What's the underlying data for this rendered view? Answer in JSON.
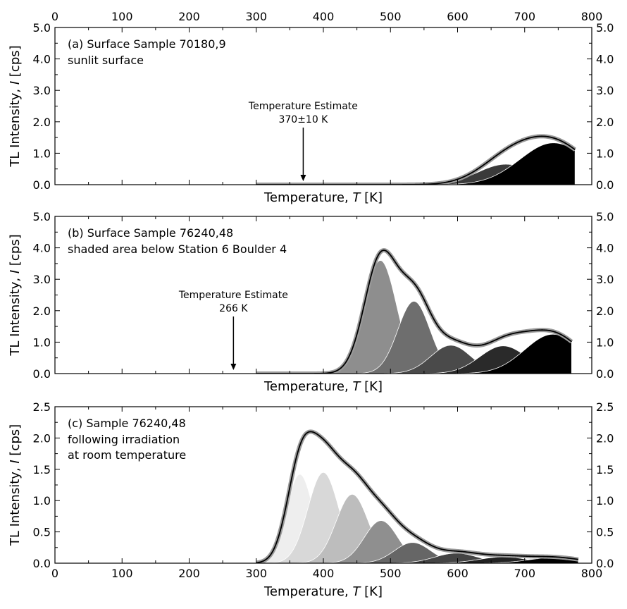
{
  "chart_data": [
    {
      "type": "area",
      "panel_label": "(a) Surface Sample 70180,9",
      "panel_sublabel": [
        "sunlit surface"
      ],
      "xlabel": "Temperature, T [K]",
      "ylabel": "TL Intensity, I [cps]",
      "xlim": [
        0,
        800
      ],
      "ylim": [
        0,
        5.0
      ],
      "xticks": [
        0,
        100,
        200,
        300,
        400,
        500,
        600,
        700,
        800
      ],
      "yticks": [
        "0.0",
        "1.0",
        "2.0",
        "3.0",
        "4.0",
        "5.0"
      ],
      "data_range": [
        300,
        775
      ],
      "annotation": {
        "lines": [
          "Temperature Estimate",
          "370±10 K"
        ],
        "x": 370
      },
      "components": [
        {
          "center": 672,
          "height": 0.65,
          "width": 42,
          "color": "#3a3a3a"
        },
        {
          "center": 743,
          "height": 1.33,
          "width": 50,
          "color": "#000000"
        }
      ],
      "total_curve_peak": {
        "x": 735,
        "y": 1.6
      }
    },
    {
      "type": "area",
      "panel_label": "(b) Surface Sample 76240,48",
      "panel_sublabel": [
        "shaded area below Station 6 Boulder 4"
      ],
      "xlabel": "Temperature, T [K]",
      "ylabel": "TL Intensity, I [cps]",
      "xlim": [
        0,
        800
      ],
      "ylim": [
        0,
        5.0
      ],
      "xticks": [
        0,
        100,
        200,
        300,
        400,
        500,
        600,
        700,
        800
      ],
      "yticks": [
        "0.0",
        "1.0",
        "2.0",
        "3.0",
        "4.0",
        "5.0"
      ],
      "data_range": [
        300,
        770
      ],
      "annotation": {
        "lines": [
          "Temperature Estimate",
          "266 K"
        ],
        "x": 266
      },
      "components": [
        {
          "center": 485,
          "height": 3.6,
          "width": 24,
          "color": "#8e8e8e"
        },
        {
          "center": 535,
          "height": 2.3,
          "width": 24,
          "color": "#6e6e6e"
        },
        {
          "center": 590,
          "height": 0.9,
          "width": 30,
          "color": "#4a4a4a"
        },
        {
          "center": 668,
          "height": 0.88,
          "width": 35,
          "color": "#2a2a2a"
        },
        {
          "center": 742,
          "height": 1.25,
          "width": 42,
          "color": "#000000"
        }
      ],
      "total_curve_peak": {
        "x": 495,
        "y": 4.25
      }
    },
    {
      "type": "area",
      "panel_label": "(c) Sample 76240,48",
      "panel_sublabel": [
        "following irradiation",
        "at room temperature"
      ],
      "xlabel": "Temperature, T [K]",
      "ylabel": "TL Intensity, I [cps]",
      "xlim": [
        0,
        800
      ],
      "ylim": [
        0,
        2.5
      ],
      "xticks": [
        0,
        100,
        200,
        300,
        400,
        500,
        600,
        700,
        800
      ],
      "yticks": [
        "0.0",
        "0.5",
        "1.0",
        "1.5",
        "2.0",
        "2.5"
      ],
      "data_range": [
        300,
        780
      ],
      "annotation": null,
      "components": [
        {
          "center": 365,
          "height": 1.42,
          "width": 20,
          "color": "#eeeeee"
        },
        {
          "center": 400,
          "height": 1.45,
          "width": 23,
          "color": "#d8d8d8"
        },
        {
          "center": 443,
          "height": 1.1,
          "width": 24,
          "color": "#bdbdbd"
        },
        {
          "center": 486,
          "height": 0.68,
          "width": 25,
          "color": "#8f8f8f"
        },
        {
          "center": 533,
          "height": 0.33,
          "width": 27,
          "color": "#666666"
        },
        {
          "center": 598,
          "height": 0.16,
          "width": 32,
          "color": "#444444"
        },
        {
          "center": 668,
          "height": 0.1,
          "width": 36,
          "color": "#222222"
        },
        {
          "center": 745,
          "height": 0.09,
          "width": 38,
          "color": "#000000"
        }
      ],
      "total_curve_peak": {
        "x": 400,
        "y": 2.1
      }
    }
  ],
  "top_axis_ticks": [
    "0",
    "100",
    "200",
    "300",
    "400",
    "500",
    "600",
    "700",
    "800"
  ]
}
